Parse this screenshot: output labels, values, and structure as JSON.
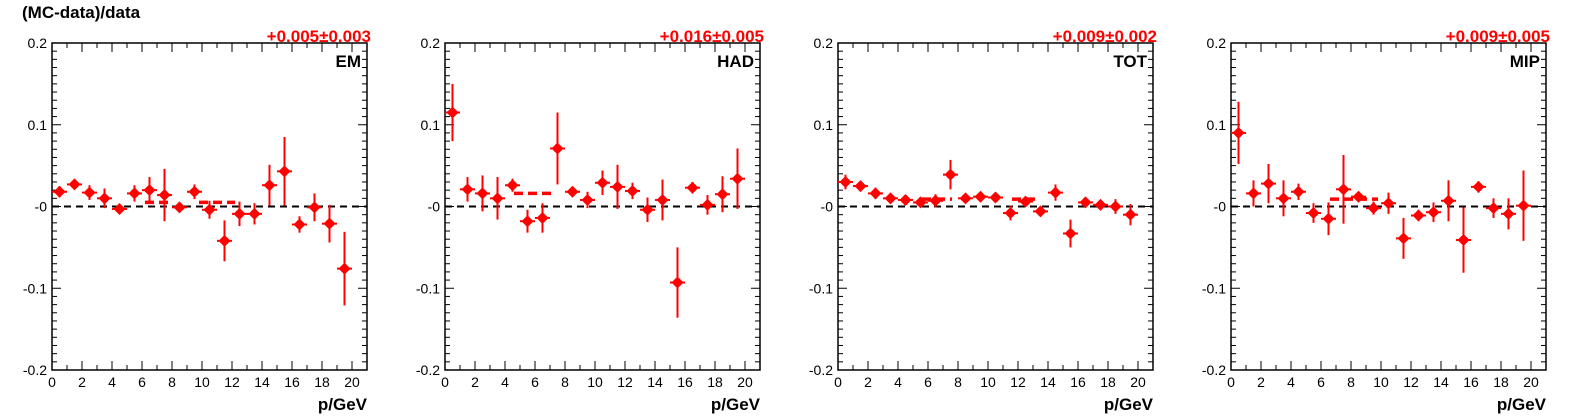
{
  "figure": {
    "ylabel": "(MC-data)/data",
    "xlabel": "p/GeV",
    "colors": {
      "data": "#ff0000",
      "axis": "#000000",
      "reference": "#000000"
    }
  },
  "chart_data": [
    {
      "type": "scatter",
      "label": "EM",
      "annotation": "+0.005±0.003",
      "xlim": [
        0,
        21
      ],
      "ylim": [
        -0.2,
        0.2
      ],
      "xticks": [
        "0",
        "2",
        "4",
        "6",
        "8",
        "10",
        "12",
        "14",
        "16",
        "18",
        "20"
      ],
      "yticks": [
        "-0.2",
        "-0.1",
        "-0",
        "0.1",
        "0.2"
      ],
      "series": [
        {
          "x": [
            0.5,
            1.5,
            2.5,
            3.5,
            4.5,
            5.5,
            6.5,
            7.5,
            8.5,
            9.5,
            10.5,
            11.5,
            12.5,
            13.5,
            14.5,
            15.5,
            16.5,
            17.5,
            18.5,
            19.5
          ],
          "y": [
            0.018,
            0.027,
            0.017,
            0.01,
            -0.003,
            0.016,
            0.02,
            0.014,
            -0.001,
            0.018,
            -0.004,
            -0.042,
            -0.009,
            -0.009,
            0.026,
            0.043,
            -0.022,
            -0.001,
            -0.021,
            -0.076
          ],
          "yerr": [
            0.007,
            0.005,
            0.009,
            0.012,
            0.006,
            0.01,
            0.016,
            0.032,
            0.005,
            0.009,
            0.011,
            0.025,
            0.015,
            0.013,
            0.025,
            0.042,
            0.01,
            0.017,
            0.023,
            0.045
          ]
        }
      ],
      "reference_segments": [
        {
          "x0": 6.2,
          "x1": 7.8,
          "y": 0.005
        },
        {
          "x0": 9.8,
          "x1": 12.2,
          "y": 0.005
        }
      ]
    },
    {
      "type": "scatter",
      "label": "HAD",
      "annotation": "+0.016±0.005",
      "xlim": [
        0,
        21
      ],
      "ylim": [
        -0.2,
        0.2
      ],
      "xticks": [
        "0",
        "2",
        "4",
        "6",
        "8",
        "10",
        "12",
        "14",
        "16",
        "18",
        "20"
      ],
      "yticks": [
        "-0.2",
        "-0.1",
        "-0",
        "0.1",
        "0.2"
      ],
      "series": [
        {
          "x": [
            0.5,
            1.5,
            2.5,
            3.5,
            4.5,
            5.5,
            6.5,
            7.5,
            8.5,
            9.5,
            10.5,
            11.5,
            12.5,
            13.5,
            14.5,
            15.5,
            16.5,
            17.5,
            18.5,
            19.5
          ],
          "y": [
            0.115,
            0.021,
            0.016,
            0.01,
            0.026,
            -0.018,
            -0.014,
            0.071,
            0.018,
            0.008,
            0.029,
            0.024,
            0.019,
            -0.004,
            0.008,
            -0.093,
            0.023,
            0.002,
            0.015,
            0.034
          ],
          "yerr": [
            0.035,
            0.015,
            0.022,
            0.026,
            0.008,
            0.014,
            0.018,
            0.044,
            0.004,
            0.01,
            0.015,
            0.027,
            0.01,
            0.015,
            0.025,
            0.043,
            0.007,
            0.012,
            0.022,
            0.037
          ]
        }
      ],
      "reference_segments": [
        {
          "x0": 4.6,
          "x1": 7.4,
          "y": 0.016
        }
      ]
    },
    {
      "type": "scatter",
      "label": "TOT",
      "annotation": "+0.009±0.002",
      "xlim": [
        0,
        21
      ],
      "ylim": [
        -0.2,
        0.2
      ],
      "xticks": [
        "0",
        "2",
        "4",
        "6",
        "8",
        "10",
        "12",
        "14",
        "16",
        "18",
        "20"
      ],
      "yticks": [
        "-0.2",
        "-0.1",
        "-0",
        "0.1",
        "0.2"
      ],
      "series": [
        {
          "x": [
            0.5,
            1.5,
            2.5,
            3.5,
            4.5,
            5.5,
            6.5,
            7.5,
            8.5,
            9.5,
            10.5,
            11.5,
            12.5,
            13.5,
            14.5,
            15.5,
            16.5,
            17.5,
            18.5,
            19.5
          ],
          "y": [
            0.03,
            0.025,
            0.016,
            0.01,
            0.008,
            0.005,
            0.007,
            0.039,
            0.01,
            0.012,
            0.011,
            -0.008,
            0.006,
            -0.006,
            0.017,
            -0.033,
            0.005,
            0.002,
            0,
            -0.01
          ],
          "yerr": [
            0.009,
            0.004,
            0.007,
            0.006,
            0.004,
            0.005,
            0.008,
            0.018,
            0.004,
            0.004,
            0.004,
            0.009,
            0.006,
            0.004,
            0.01,
            0.017,
            0.004,
            0.005,
            0.009,
            0.013
          ]
        }
      ],
      "reference_segments": [
        {
          "x0": 5.6,
          "x1": 7.6,
          "y": 0.009
        },
        {
          "x0": 11.6,
          "x1": 13.4,
          "y": 0.009
        }
      ]
    },
    {
      "type": "scatter",
      "label": "MIP",
      "annotation": "+0.009±0.005",
      "xlim": [
        0,
        21
      ],
      "ylim": [
        -0.2,
        0.2
      ],
      "xticks": [
        "0",
        "2",
        "4",
        "6",
        "8",
        "10",
        "12",
        "14",
        "16",
        "18",
        "20"
      ],
      "yticks": [
        "-0.2",
        "-0.1",
        "-0",
        "0.1",
        "0.2"
      ],
      "series": [
        {
          "x": [
            0.5,
            1.5,
            2.5,
            3.5,
            4.5,
            5.5,
            6.5,
            7.5,
            8.5,
            9.5,
            10.5,
            11.5,
            12.5,
            13.5,
            14.5,
            15.5,
            16.5,
            17.5,
            18.5,
            19.5
          ],
          "y": [
            0.09,
            0.016,
            0.028,
            0.01,
            0.018,
            -0.008,
            -0.015,
            0.021,
            0.012,
            -0.002,
            0.004,
            -0.039,
            -0.011,
            -0.007,
            0.007,
            -0.041,
            0.024,
            -0.002,
            -0.009,
            0.001
          ],
          "yerr": [
            0.038,
            0.016,
            0.024,
            0.022,
            0.01,
            0.012,
            0.02,
            0.042,
            0.004,
            0.008,
            0.013,
            0.025,
            0.007,
            0.012,
            0.025,
            0.04,
            0.007,
            0.012,
            0.019,
            0.043
          ]
        }
      ],
      "reference_segments": [
        {
          "x0": 6.6,
          "x1": 9.8,
          "y": 0.009
        }
      ]
    }
  ]
}
